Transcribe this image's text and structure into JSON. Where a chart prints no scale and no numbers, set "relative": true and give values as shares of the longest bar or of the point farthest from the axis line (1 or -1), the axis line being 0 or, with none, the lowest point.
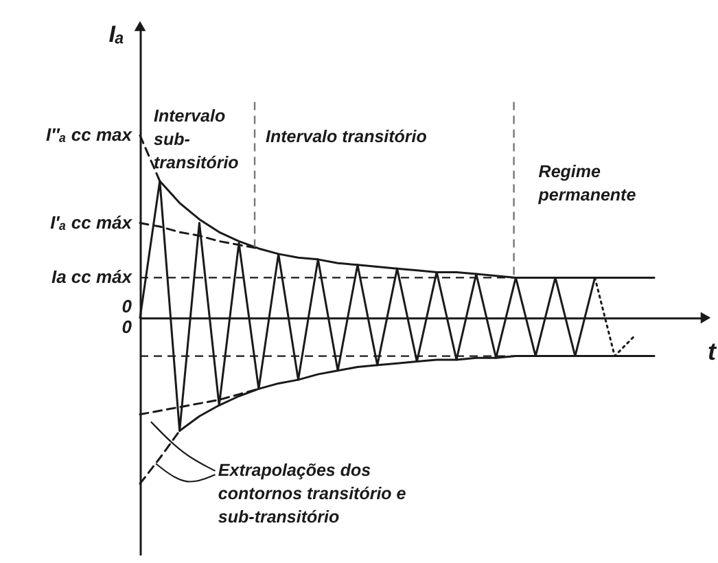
{
  "chart_data": {
    "type": "line",
    "xlabel": "t",
    "ylabel": "Iₐ",
    "relative": true,
    "line_style": "solid",
    "categories": [
      null,
      null,
      null,
      null,
      null,
      null,
      null,
      null,
      null,
      null,
      null,
      null,
      null,
      null,
      null,
      null,
      null,
      null,
      null,
      null,
      null,
      null,
      null,
      null,
      null,
      null,
      null
    ],
    "series": [
      {
        "color": "#1a1a1a",
        "values": [
          0,
          0.75,
          -0.62,
          0.52,
          -0.48,
          0.41,
          -0.39,
          0.35,
          -0.34,
          0.32,
          -0.29,
          0.29,
          -0.26,
          0.27,
          -0.24,
          0.25,
          -0.23,
          0.24,
          -0.22,
          0.22,
          -0.21,
          0.22,
          -0.21,
          0.22,
          null,
          null,
          null
        ]
      },
      {
        "color": "#1a1a1a",
        "line_style": "dotted",
        "values": [
          null,
          null,
          null,
          null,
          null,
          null,
          null,
          null,
          null,
          null,
          null,
          null,
          null,
          null,
          null,
          null,
          null,
          null,
          null,
          null,
          null,
          null,
          null,
          0.22,
          -0.21,
          -0.1,
          null
        ]
      },
      {
        "color": "#1a1a1a",
        "values": [
          null,
          0.75,
          0.63,
          0.54,
          0.47,
          0.42,
          0.38,
          0.35,
          0.33,
          0.32,
          0.3,
          0.29,
          0.28,
          0.27,
          0.26,
          0.25,
          0.25,
          0.24,
          0.23,
          0.22,
          0.22,
          0.22,
          0.22,
          0.22,
          0.22,
          0.22,
          0.22
        ]
      },
      {
        "color": "#1a1a1a",
        "values": [
          null,
          null,
          -0.62,
          -0.54,
          -0.48,
          -0.43,
          -0.39,
          -0.36,
          -0.34,
          -0.31,
          -0.29,
          -0.27,
          -0.26,
          -0.25,
          -0.24,
          -0.23,
          -0.23,
          -0.22,
          -0.22,
          -0.21,
          -0.21,
          -0.21,
          -0.21,
          -0.21,
          -0.21,
          -0.21,
          -0.21
        ]
      },
      {
        "color": "#1a1a1a",
        "line_style": "dashed",
        "values": [
          0.52,
          0.5,
          0.47,
          0.45,
          0.42,
          0.4,
          0.38,
          null,
          null,
          null,
          null,
          null,
          null,
          null,
          null,
          null,
          null,
          null,
          null,
          null,
          null,
          null,
          null,
          null,
          null,
          null,
          null
        ]
      },
      {
        "color": "#1a1a1a",
        "line_style": "dashed",
        "values": [
          1,
          0.75,
          null,
          null,
          null,
          null,
          null,
          null,
          null,
          null,
          null,
          null,
          null,
          null,
          null,
          null,
          null,
          null,
          null,
          null,
          null,
          null,
          null,
          null,
          null,
          null,
          null
        ]
      },
      {
        "color": "#1a1a1a",
        "line_style": "dashed",
        "values": [
          -0.53,
          -0.51,
          -0.49,
          -0.47,
          -0.45,
          -0.42,
          -0.39,
          null,
          null,
          null,
          null,
          null,
          null,
          null,
          null,
          null,
          null,
          null,
          null,
          null,
          null,
          null,
          null,
          null,
          null,
          null,
          null
        ]
      },
      {
        "color": "#1a1a1a",
        "line_style": "dashed",
        "values": [
          -0.91,
          -0.77,
          -0.62,
          null,
          null,
          null,
          null,
          null,
          null,
          null,
          null,
          null,
          null,
          null,
          null,
          null,
          null,
          null,
          null,
          null,
          null,
          null,
          null,
          null,
          null,
          null,
          null
        ]
      }
    ],
    "ref_lines": [
      {
        "axis": "y",
        "value": 0.22,
        "label": "Ia cc máx",
        "line_style": "dashed",
        "color": "#1a1a1a"
      },
      {
        "axis": "y",
        "value": -0.21,
        "line_style": "dashed",
        "color": "#1a1a1a"
      }
    ],
    "annotations": [
      "I″ₐ cc max",
      "I′ₐ cc máx",
      "0",
      "0",
      "Intervalo sub-transitório",
      "Intervalo transitório",
      "Regime permanente",
      "Extrapolações dos contornos transitório e sub-transitório"
    ]
  }
}
